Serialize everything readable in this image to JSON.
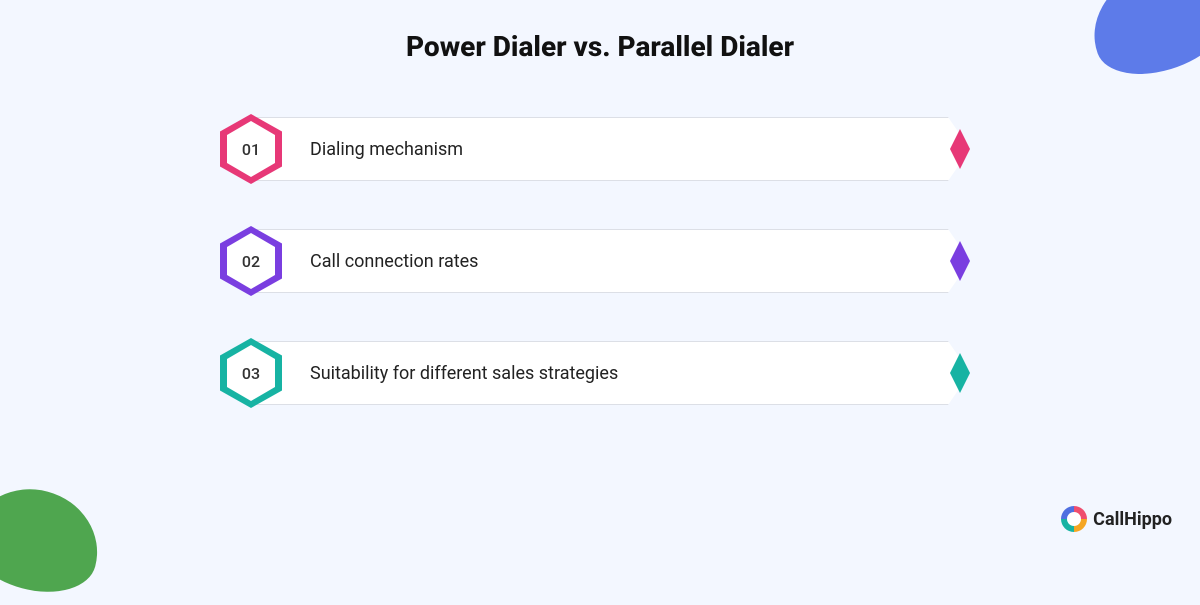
{
  "title": "Power Dialer vs. Parallel Dialer",
  "background_color": "#f3f7ff",
  "items": [
    {
      "num": "01",
      "label": "Dialing mechanism",
      "color": "#e73877"
    },
    {
      "num": "02",
      "label": "Call connection rates",
      "color": "#7a3ee0"
    },
    {
      "num": "03",
      "label": "Suitability for different sales strategies",
      "color": "#17b3a3"
    }
  ],
  "logo_text": "CallHippo",
  "blob_tr_color": "#5d7be9",
  "blob_bl_color": "#4fa64f"
}
